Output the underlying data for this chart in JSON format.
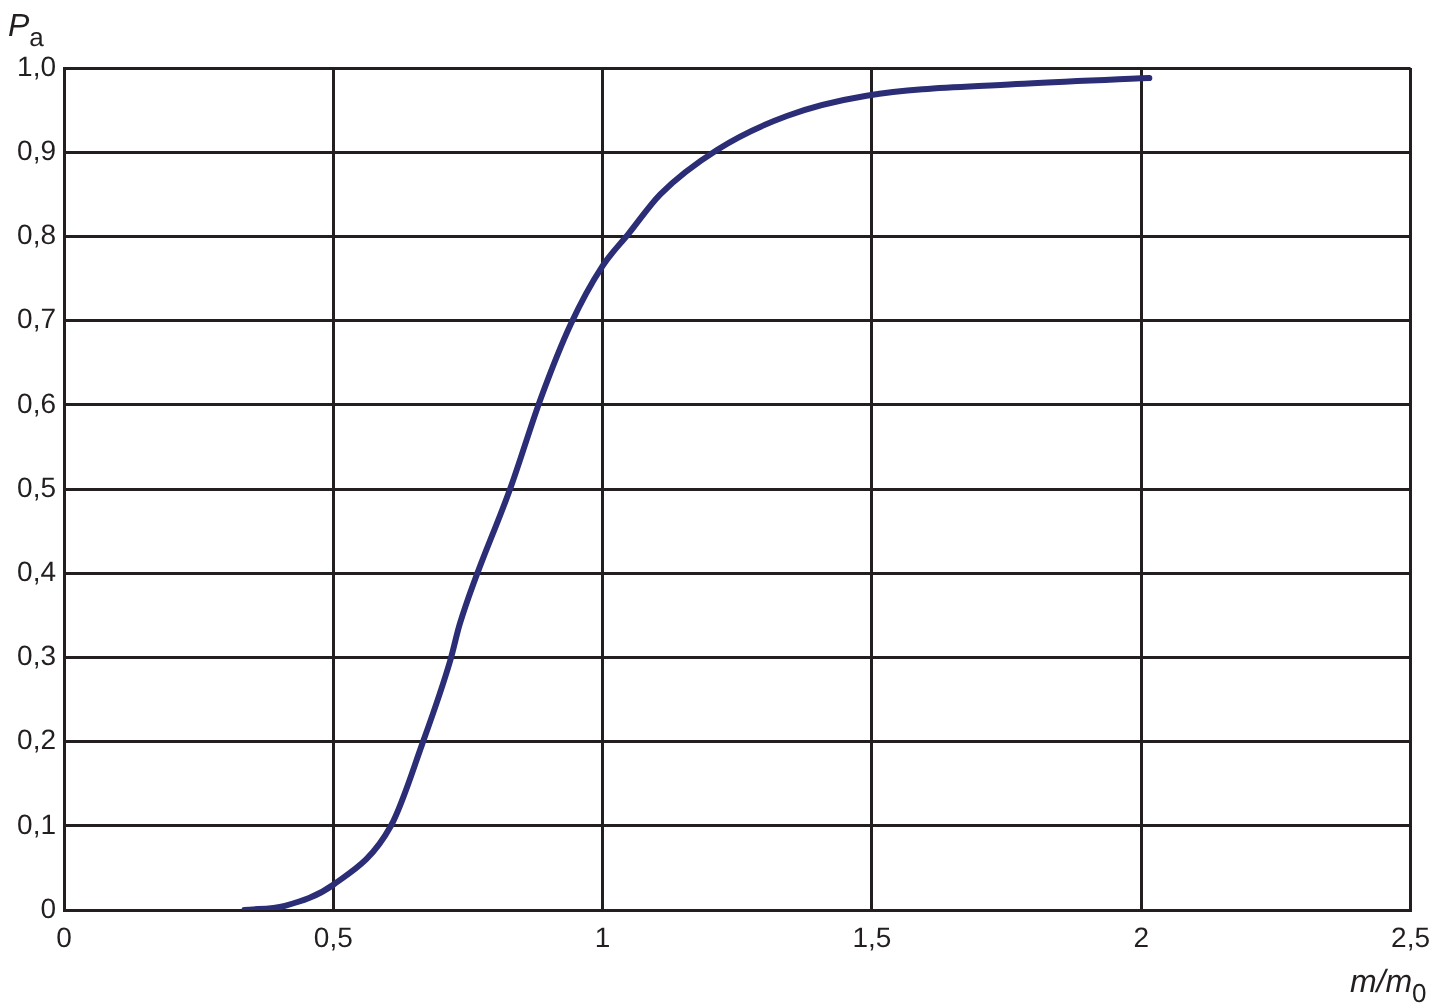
{
  "chart_data": {
    "type": "line",
    "xlabel": "m/m$_{0}$",
    "ylabel": "P$_{a}$",
    "x": [
      0.335,
      0.41,
      0.5,
      0.607,
      0.665,
      0.717,
      0.735,
      0.831,
      0.886,
      0.941,
      1.0,
      1.048,
      1.107,
      1.213,
      1.342,
      1.49,
      1.768,
      2.015
    ],
    "values": [
      0,
      0.005,
      0.03,
      0.1,
      0.197,
      0.296,
      0.34,
      0.505,
      0.609,
      0.696,
      0.765,
      0.803,
      0.85,
      0.903,
      0.943,
      0.967,
      0.981,
      0.988
    ],
    "color": "#2b2d76",
    "xlim": [
      0,
      2.5
    ],
    "xticks": [
      0,
      {
        "value": 0.5,
        "label": "0,5"
      },
      1,
      {
        "value": 1.5,
        "label": "1,5"
      },
      2,
      {
        "value": 2.5,
        "label": "2,5"
      }
    ],
    "ylim": [
      0,
      1
    ],
    "yticks": [
      0,
      {
        "value": 0.1,
        "label": "0,1"
      },
      {
        "value": 0.2,
        "label": "0,2"
      },
      {
        "value": 0.3,
        "label": "0,3"
      },
      {
        "value": 0.4,
        "label": "0,4"
      },
      {
        "value": 0.5,
        "label": "0,5"
      },
      {
        "value": 0.6,
        "label": "0,6"
      },
      {
        "value": 0.7,
        "label": "0,7"
      },
      {
        "value": 0.8,
        "label": "0,8"
      },
      {
        "value": 0.9,
        "label": "0,9"
      },
      {
        "value": 1,
        "label": "1,0"
      }
    ],
    "grid": true,
    "legend": false,
    "marker": "none",
    "line_style": "solid"
  }
}
